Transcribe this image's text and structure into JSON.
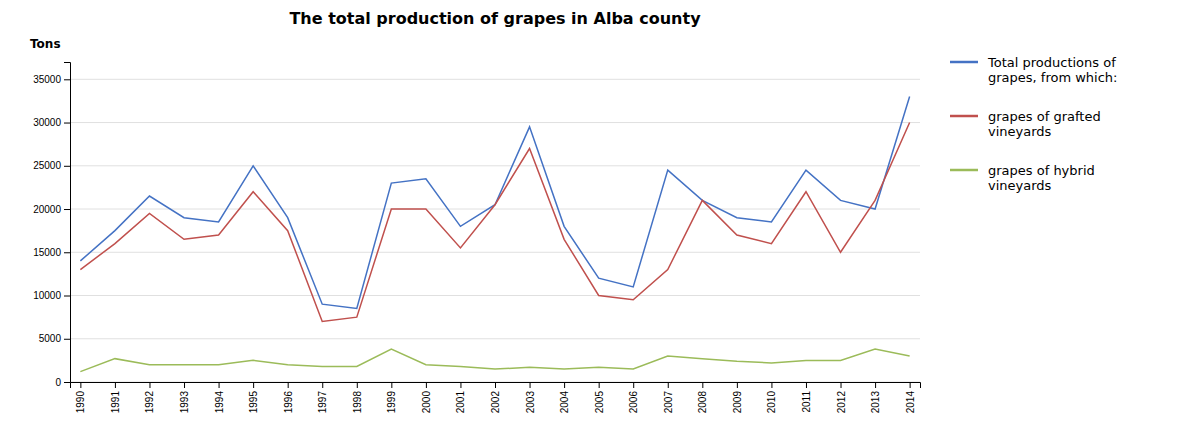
{
  "chart_data": {
    "type": "line",
    "title": "The total production of grapes in Alba county",
    "ylabel": "Tons",
    "x": [
      1990,
      1991,
      1992,
      1993,
      1994,
      1995,
      1996,
      1997,
      1998,
      1999,
      2000,
      2001,
      2002,
      2003,
      2004,
      2005,
      2006,
      2007,
      2008,
      2009,
      2010,
      2011,
      2012,
      2013,
      2014
    ],
    "series": [
      {
        "name": "Total productions of\ngrapes, from which:",
        "color": "#4472C4",
        "values": [
          14000,
          17500,
          21500,
          19000,
          18500,
          25000,
          19000,
          9000,
          8500,
          23000,
          23500,
          18000,
          20500,
          29500,
          18000,
          12000,
          11000,
          24500,
          21000,
          19000,
          18500,
          24500,
          21000,
          20000,
          33000
        ]
      },
      {
        "name": "grapes of grafted\nvineyards",
        "color": "#C0504D",
        "values": [
          13000,
          16000,
          19500,
          16500,
          17000,
          22000,
          17500,
          7000,
          7500,
          20000,
          20000,
          15500,
          20500,
          27000,
          16500,
          10000,
          9500,
          13000,
          21000,
          17000,
          16000,
          22000,
          15000,
          21000,
          30000
        ]
      },
      {
        "name": "grapes of hybrid\nvineyards",
        "color": "#9BBB59",
        "values": [
          1200,
          2700,
          2000,
          2000,
          2000,
          2500,
          2000,
          1800,
          1800,
          3800,
          2000,
          1800,
          1500,
          1700,
          1500,
          1700,
          1500,
          3000,
          2700,
          2400,
          2200,
          2500,
          2500,
          3800,
          3000
        ]
      }
    ],
    "xlim": [
      1989.7,
      2014.3
    ],
    "xticks": [
      1990,
      1991,
      1992,
      1993,
      1994,
      1995,
      1996,
      1997,
      1998,
      1999,
      2000,
      2001,
      2002,
      2003,
      2004,
      2005,
      2006,
      2007,
      2008,
      2009,
      2010,
      2011,
      2012,
      2013,
      2014
    ],
    "ylim": [
      0,
      37000
    ],
    "yticks": [
      0,
      5000,
      10000,
      15000,
      20000,
      25000,
      30000,
      35000
    ],
    "grid": "y",
    "legend": "right"
  }
}
